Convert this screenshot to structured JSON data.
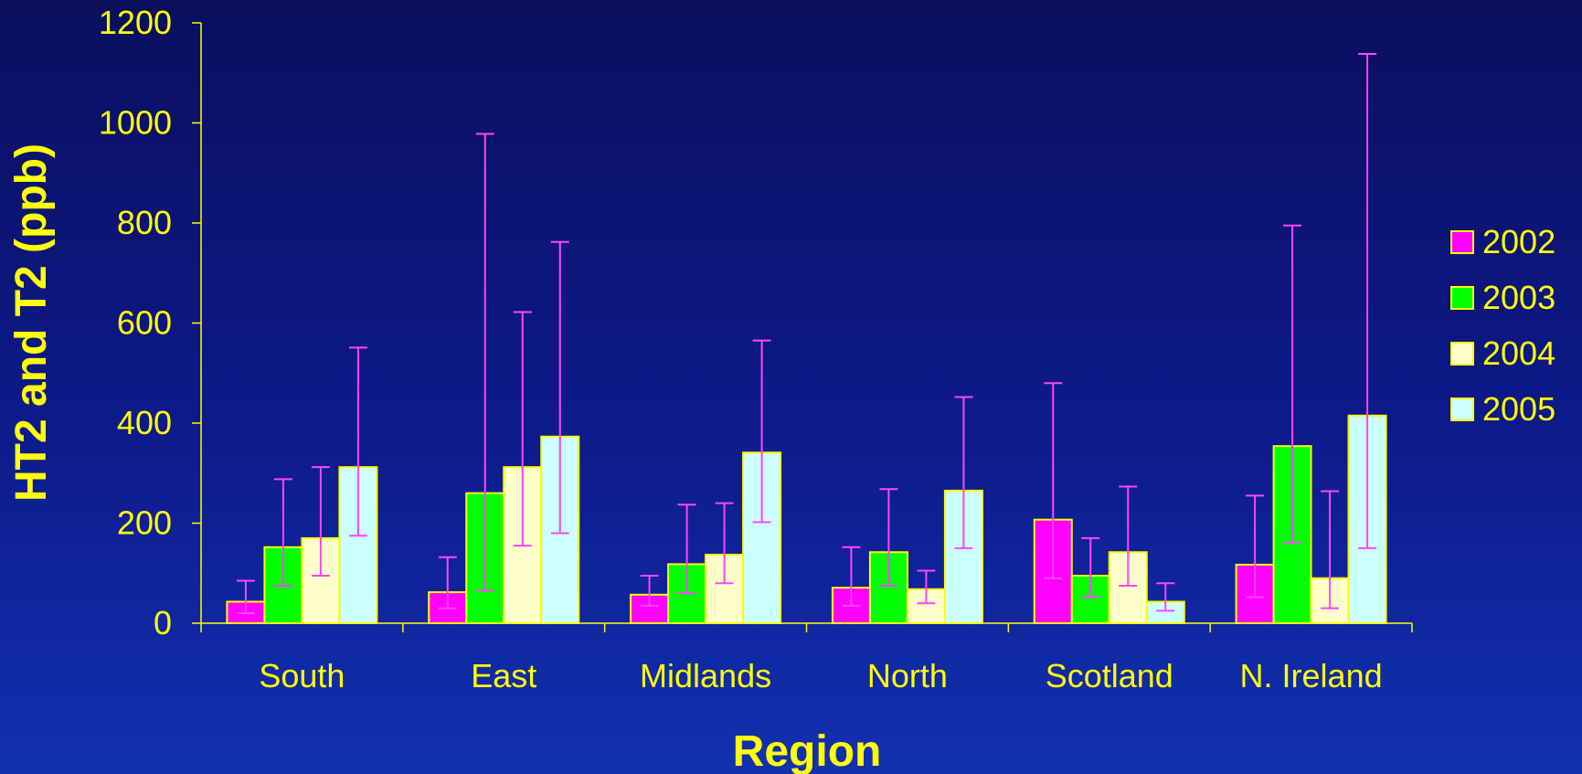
{
  "chart_data": {
    "type": "bar",
    "title": "",
    "xlabel": "Region",
    "ylabel": "HT2 and T2 (ppb)",
    "ylim": [
      0,
      1200
    ],
    "yticks": [
      0,
      200,
      400,
      600,
      800,
      1000,
      1200
    ],
    "grid": false,
    "legend_position": "right",
    "categories": [
      "South",
      "East",
      "Midlands",
      "North",
      "Scotland",
      "N. Ireland"
    ],
    "series": [
      {
        "name": "2002",
        "color": "#ff00ff",
        "values": [
          43,
          62,
          57,
          71,
          207,
          117
        ],
        "error_low": [
          20,
          30,
          35,
          35,
          90,
          52
        ],
        "error_high": [
          85,
          132,
          95,
          152,
          480,
          255
        ]
      },
      {
        "name": "2003",
        "color": "#00ff00",
        "values": [
          152,
          260,
          118,
          142,
          95,
          354
        ],
        "error_low": [
          75,
          65,
          60,
          75,
          52,
          160
        ],
        "error_high": [
          288,
          978,
          237,
          268,
          170,
          795
        ]
      },
      {
        "name": "2004",
        "color": "#ffffcc",
        "values": [
          170,
          312,
          137,
          68,
          142,
          90
        ],
        "error_low": [
          95,
          155,
          80,
          40,
          75,
          30
        ],
        "error_high": [
          312,
          622,
          240,
          105,
          273,
          264
        ]
      },
      {
        "name": "2005",
        "color": "#ccffff",
        "values": [
          312,
          373,
          341,
          265,
          43,
          415
        ],
        "error_low": [
          175,
          180,
          202,
          150,
          25,
          150
        ],
        "error_high": [
          551,
          762,
          565,
          452,
          80,
          1138
        ]
      }
    ],
    "bar_outline_color": "#ffff00",
    "error_bar_color": "#ff44ff",
    "axis_color": "#ffff00",
    "text_color": "#ffff00"
  }
}
